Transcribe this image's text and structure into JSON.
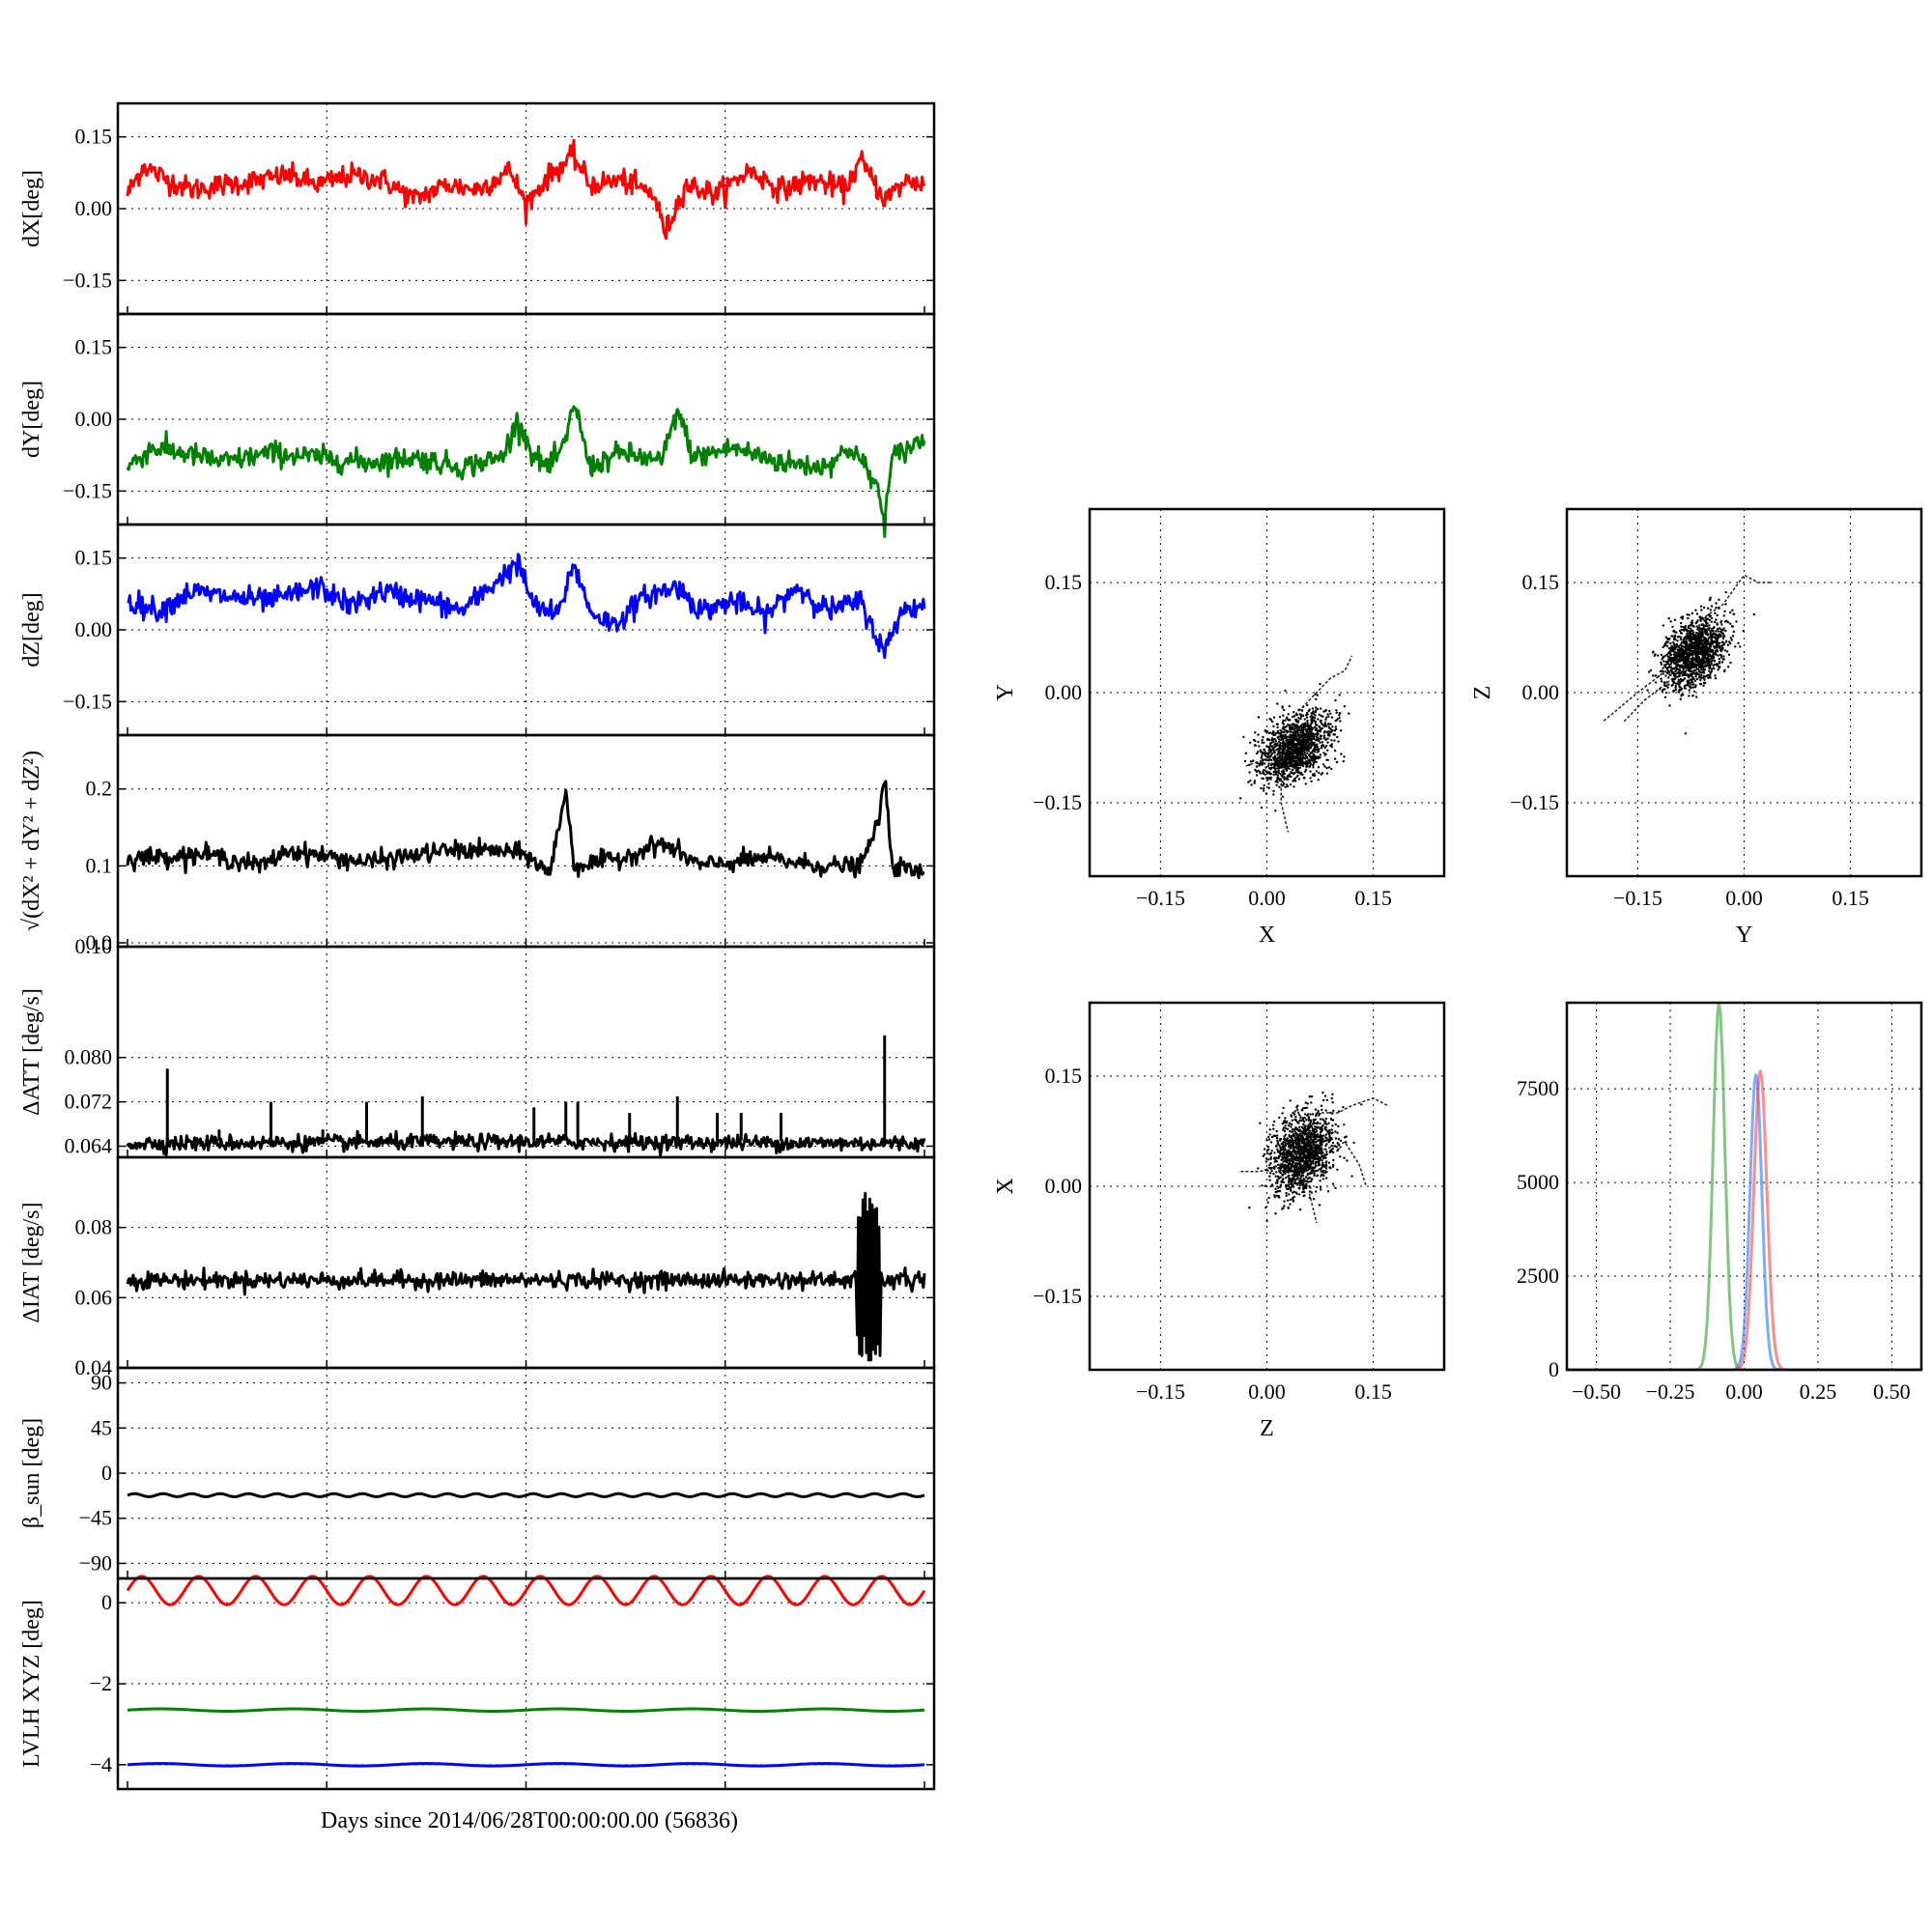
{
  "figure": {
    "xlabel": "Days since 2014/06/28T00:00:00.00 (56836)"
  },
  "chart_data": [
    {
      "id": "dX",
      "type": "line",
      "ylabel": "dX[deg]",
      "ylim": [
        -0.22,
        0.22
      ],
      "yticks": [
        -0.15,
        0.0,
        0.15
      ],
      "ytick_labels": [
        "−0.15",
        "0.00",
        "0.15"
      ],
      "grid": true,
      "series": [
        {
          "color": "#ff0000",
          "anchors": [
            [
              0,
              0.03
            ],
            [
              0.02,
              0.09
            ],
            [
              0.05,
              0.06
            ],
            [
              0.08,
              0.04
            ],
            [
              0.12,
              0.05
            ],
            [
              0.17,
              0.06
            ],
            [
              0.2,
              0.07
            ],
            [
              0.24,
              0.05
            ],
            [
              0.28,
              0.07
            ],
            [
              0.32,
              0.06
            ],
            [
              0.36,
              0.02
            ],
            [
              0.4,
              0.05
            ],
            [
              0.44,
              0.04
            ],
            [
              0.48,
              0.08
            ],
            [
              0.5,
              0.01
            ],
            [
              0.53,
              0.07
            ],
            [
              0.56,
              0.11
            ],
            [
              0.58,
              0.05
            ],
            [
              0.62,
              0.06
            ],
            [
              0.66,
              0.03
            ],
            [
              0.675,
              -0.05
            ],
            [
              0.7,
              0.05
            ],
            [
              0.74,
              0.03
            ],
            [
              0.78,
              0.08
            ],
            [
              0.82,
              0.04
            ],
            [
              0.86,
              0.06
            ],
            [
              0.9,
              0.04
            ],
            [
              0.92,
              0.1
            ],
            [
              0.95,
              0.02
            ],
            [
              0.98,
              0.06
            ],
            [
              1,
              0.05
            ]
          ],
          "noise": 0.012
        }
      ]
    },
    {
      "id": "dY",
      "type": "line",
      "ylabel": "dY[deg]",
      "ylim": [
        -0.22,
        0.22
      ],
      "yticks": [
        -0.15,
        0.0,
        0.15
      ],
      "ytick_labels": [
        "−0.15",
        "0.00",
        "0.15"
      ],
      "grid": true,
      "series": [
        {
          "color": "#008000",
          "anchors": [
            [
              0,
              -0.1
            ],
            [
              0.03,
              -0.06
            ],
            [
              0.07,
              -0.07
            ],
            [
              0.12,
              -0.09
            ],
            [
              0.18,
              -0.07
            ],
            [
              0.24,
              -0.08
            ],
            [
              0.3,
              -0.09
            ],
            [
              0.36,
              -0.08
            ],
            [
              0.42,
              -0.1
            ],
            [
              0.47,
              -0.08
            ],
            [
              0.49,
              0.0
            ],
            [
              0.51,
              -0.08
            ],
            [
              0.53,
              -0.1
            ],
            [
              0.55,
              -0.05
            ],
            [
              0.56,
              0.04
            ],
            [
              0.58,
              -0.1
            ],
            [
              0.62,
              -0.07
            ],
            [
              0.67,
              -0.09
            ],
            [
              0.69,
              0.02
            ],
            [
              0.71,
              -0.08
            ],
            [
              0.76,
              -0.06
            ],
            [
              0.82,
              -0.09
            ],
            [
              0.87,
              -0.1
            ],
            [
              0.91,
              -0.06
            ],
            [
              0.94,
              -0.14
            ],
            [
              0.95,
              -0.21
            ],
            [
              0.96,
              -0.08
            ],
            [
              1,
              -0.04
            ]
          ],
          "noise": 0.012
        }
      ]
    },
    {
      "id": "dZ",
      "type": "line",
      "ylabel": "dZ[deg]",
      "ylim": [
        -0.22,
        0.22
      ],
      "yticks": [
        -0.15,
        0.0,
        0.15
      ],
      "ytick_labels": [
        "−0.15",
        "0.00",
        "0.15"
      ],
      "grid": true,
      "series": [
        {
          "color": "#0000ff",
          "anchors": [
            [
              0,
              0.06
            ],
            [
              0.04,
              0.04
            ],
            [
              0.08,
              0.08
            ],
            [
              0.12,
              0.07
            ],
            [
              0.18,
              0.06
            ],
            [
              0.24,
              0.09
            ],
            [
              0.28,
              0.05
            ],
            [
              0.32,
              0.08
            ],
            [
              0.38,
              0.06
            ],
            [
              0.42,
              0.04
            ],
            [
              0.49,
              0.14
            ],
            [
              0.51,
              0.05
            ],
            [
              0.54,
              0.03
            ],
            [
              0.56,
              0.14
            ],
            [
              0.58,
              0.04
            ],
            [
              0.61,
              0.01
            ],
            [
              0.65,
              0.07
            ],
            [
              0.69,
              0.09
            ],
            [
              0.72,
              0.04
            ],
            [
              0.76,
              0.06
            ],
            [
              0.8,
              0.03
            ],
            [
              0.84,
              0.09
            ],
            [
              0.88,
              0.04
            ],
            [
              0.92,
              0.06
            ],
            [
              0.95,
              -0.05
            ],
            [
              0.97,
              0.04
            ],
            [
              1,
              0.05
            ]
          ],
          "noise": 0.012
        }
      ]
    },
    {
      "id": "norm",
      "type": "line",
      "ylabel": "√(dX² + dY² + dZ²)",
      "ylim": [
        -0.005,
        0.27
      ],
      "yticks": [
        0.0,
        0.1,
        0.2
      ],
      "ytick_labels": [
        "0.0",
        "0.1",
        "0.2"
      ],
      "grid": true,
      "series": [
        {
          "color": "#000000",
          "anchors": [
            [
              0,
              0.11
            ],
            [
              0.1,
              0.115
            ],
            [
              0.17,
              0.1
            ],
            [
              0.2,
              0.12
            ],
            [
              0.3,
              0.105
            ],
            [
              0.4,
              0.12
            ],
            [
              0.46,
              0.12
            ],
            [
              0.5,
              0.115
            ],
            [
              0.53,
              0.09
            ],
            [
              0.55,
              0.2
            ],
            [
              0.56,
              0.1
            ],
            [
              0.62,
              0.11
            ],
            [
              0.67,
              0.13
            ],
            [
              0.72,
              0.1
            ],
            [
              0.8,
              0.11
            ],
            [
              0.87,
              0.1
            ],
            [
              0.92,
              0.1
            ],
            [
              0.94,
              0.15
            ],
            [
              0.95,
              0.21
            ],
            [
              0.96,
              0.1
            ],
            [
              1,
              0.09
            ]
          ],
          "noise": 0.006
        }
      ]
    },
    {
      "id": "datt",
      "type": "line",
      "ylabel": "ΔATT [deg/s]",
      "ylim": [
        0.062,
        0.1
      ],
      "yticks": [
        0.064,
        0.072,
        0.08,
        0.1
      ],
      "ytick_labels": [
        "0.064",
        "0.072",
        "0.080",
        "0.10"
      ],
      "grid": true,
      "series": [
        {
          "color": "#000000",
          "anchors": [
            [
              0,
              0.0645
            ],
            [
              0.5,
              0.0648
            ],
            [
              1,
              0.0645
            ]
          ],
          "noise": 0.0007,
          "spikes": [
            [
              0.05,
              0.078
            ],
            [
              0.115,
              0.067
            ],
            [
              0.18,
              0.072
            ],
            [
              0.245,
              0.067
            ],
            [
              0.3,
              0.072
            ],
            [
              0.37,
              0.073
            ],
            [
              0.51,
              0.071
            ],
            [
              0.55,
              0.072
            ],
            [
              0.565,
              0.072
            ],
            [
              0.63,
              0.07
            ],
            [
              0.69,
              0.073
            ],
            [
              0.74,
              0.07
            ],
            [
              0.77,
              0.07
            ],
            [
              0.82,
              0.07
            ],
            [
              0.95,
              0.084
            ]
          ]
        }
      ]
    },
    {
      "id": "diat",
      "type": "line",
      "ylabel": "ΔIAT [deg/s]",
      "ylim": [
        0.04,
        0.1
      ],
      "yticks": [
        0.04,
        0.06,
        0.08
      ],
      "ytick_labels": [
        "0.04",
        "0.06",
        "0.08"
      ],
      "grid": true,
      "series": [
        {
          "color": "#000000",
          "anchors": [
            [
              0,
              0.065
            ],
            [
              1,
              0.065
            ]
          ],
          "noise": 0.0012,
          "burst": [
            0.915,
            0.945,
            0.041,
            0.09
          ]
        }
      ]
    },
    {
      "id": "beta",
      "type": "line",
      "ylabel": "β_sun [deg]",
      "ylim": [
        -105,
        105
      ],
      "yticks": [
        -90,
        -45,
        0,
        45,
        90
      ],
      "ytick_labels": [
        "−90",
        "−45",
        "0",
        "45",
        "90"
      ],
      "grid": true,
      "series": [
        {
          "color": "#000000",
          "mean": -22,
          "amplitude": 1.5,
          "cycles": 28
        }
      ]
    },
    {
      "id": "lvlh",
      "type": "line",
      "ylabel": "LVLH XYZ [deg]",
      "ylim": [
        -4.6,
        0.6
      ],
      "yticks": [
        -4,
        -2,
        0
      ],
      "ytick_labels": [
        "−4",
        "−2",
        "0"
      ],
      "grid": true,
      "series": [
        {
          "color": "#ff0000",
          "mean": 0.3,
          "amplitude": 0.35,
          "cycles": 14
        },
        {
          "color": "#008000",
          "mean": -2.65,
          "amplitude": 0.03,
          "cycles": 6
        },
        {
          "color": "#0000ff",
          "mean": -4.0,
          "amplitude": 0.03,
          "cycles": 6
        }
      ]
    },
    {
      "id": "scatter_xy",
      "type": "scatter",
      "xlabel": "X",
      "ylabel": "Y",
      "xlim": [
        -0.25,
        0.25
      ],
      "ylim": [
        -0.25,
        0.25
      ],
      "ticks": [
        -0.15,
        0.0,
        0.15
      ],
      "tick_labels": [
        "−0.15",
        "0.00",
        "0.15"
      ],
      "cluster": {
        "cx": 0.04,
        "cy": -0.075,
        "sx": 0.025,
        "sy": 0.022
      },
      "trails": [
        [
          [
            0.04,
            -0.03
          ],
          [
            0.07,
            0.0
          ],
          [
            0.09,
            0.02
          ],
          [
            0.11,
            0.03
          ],
          [
            0.12,
            0.05
          ]
        ],
        [
          [
            0.02,
            -0.11
          ],
          [
            0.02,
            -0.15
          ],
          [
            0.03,
            -0.19
          ]
        ],
        [
          [
            0.0,
            -0.09
          ],
          [
            -0.03,
            -0.1
          ]
        ]
      ]
    },
    {
      "id": "scatter_yz",
      "type": "scatter",
      "xlabel": "Y",
      "ylabel": "Z",
      "xlim": [
        -0.25,
        0.25
      ],
      "ylim": [
        -0.25,
        0.25
      ],
      "ticks": [
        -0.15,
        0.0,
        0.15
      ],
      "tick_labels": [
        "−0.15",
        "0.00",
        "0.15"
      ],
      "cluster": {
        "cx": -0.07,
        "cy": 0.055,
        "sx": 0.022,
        "sy": 0.022
      },
      "trails": [
        [
          [
            -0.06,
            0.1
          ],
          [
            -0.03,
            0.12
          ],
          [
            0.0,
            0.16
          ],
          [
            0.02,
            0.15
          ],
          [
            0.04,
            0.15
          ]
        ],
        [
          [
            -0.1,
            0.02
          ],
          [
            -0.14,
            -0.01
          ],
          [
            -0.17,
            -0.04
          ]
        ],
        [
          [
            -0.11,
            0.03
          ],
          [
            -0.15,
            0.0
          ],
          [
            -0.2,
            -0.04
          ]
        ]
      ]
    },
    {
      "id": "scatter_zx",
      "type": "scatter",
      "xlabel": "Z",
      "ylabel": "X",
      "xlim": [
        -0.25,
        0.25
      ],
      "ylim": [
        -0.25,
        0.25
      ],
      "ticks": [
        -0.15,
        0.0,
        0.15
      ],
      "tick_labels": [
        "−0.15",
        "0.00",
        "0.15"
      ],
      "cluster": {
        "cx": 0.05,
        "cy": 0.045,
        "sx": 0.022,
        "sy": 0.026
      },
      "trails": [
        [
          [
            0.07,
            0.1
          ],
          [
            0.1,
            0.1
          ],
          [
            0.12,
            0.11
          ],
          [
            0.15,
            0.12
          ],
          [
            0.17,
            0.11
          ]
        ],
        [
          [
            0.08,
            0.05
          ],
          [
            0.11,
            0.06
          ],
          [
            0.13,
            0.03
          ],
          [
            0.14,
            0.0
          ]
        ],
        [
          [
            0.02,
            0.03
          ],
          [
            -0.01,
            0.02
          ],
          [
            -0.04,
            0.02
          ]
        ],
        [
          [
            0.06,
            -0.01
          ],
          [
            0.07,
            -0.05
          ]
        ]
      ]
    },
    {
      "id": "histogram",
      "type": "histogram",
      "xlim": [
        -0.6,
        0.6
      ],
      "ylim": [
        0,
        9800
      ],
      "xticks": [
        -0.5,
        -0.25,
        0.0,
        0.25,
        0.5
      ],
      "xtick_labels": [
        "−0.50",
        "−0.25",
        "0.00",
        "0.25",
        "0.50"
      ],
      "yticks": [
        0,
        2500,
        5000,
        7500
      ],
      "ytick_labels": [
        "0",
        "2500",
        "5000",
        "7500"
      ],
      "series": [
        {
          "color": "#2ca02c",
          "center": -0.085,
          "width": 0.02,
          "peak": 9800
        },
        {
          "color": "#1f77ff",
          "center": 0.04,
          "width": 0.02,
          "peak": 7900
        },
        {
          "color": "#ff4040",
          "center": 0.055,
          "width": 0.022,
          "peak": 8000
        }
      ]
    }
  ]
}
